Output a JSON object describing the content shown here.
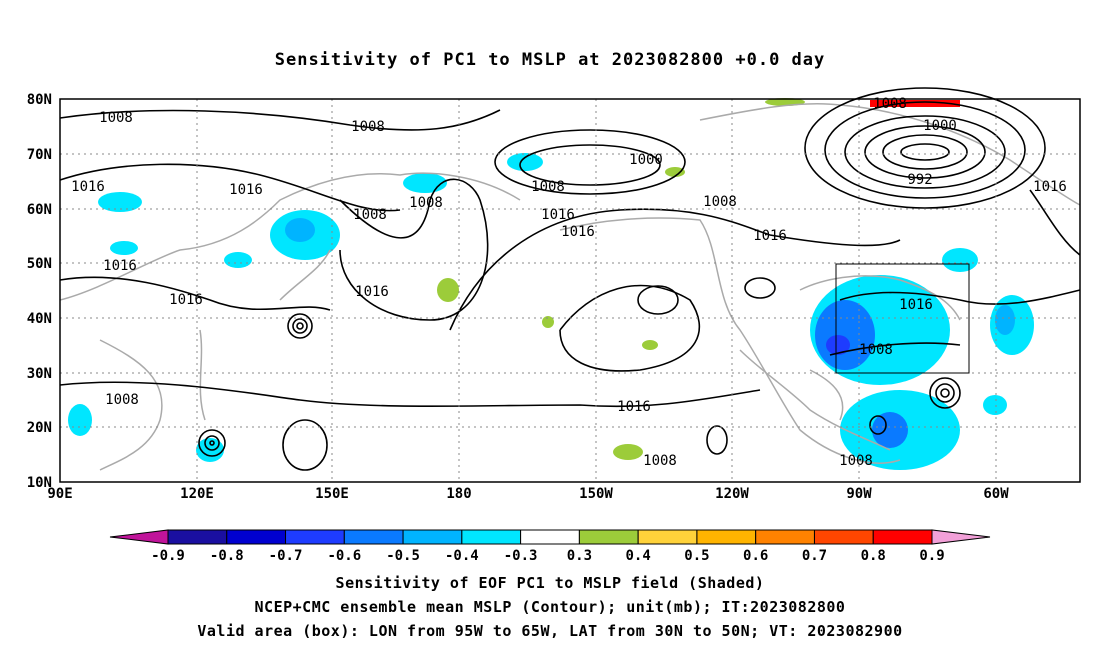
{
  "title": "Sensitivity of PC1 to MSLP at 2023082800 +0.0 day",
  "map": {
    "lat_labels": [
      "80N",
      "70N",
      "60N",
      "50N",
      "40N",
      "30N",
      "20N",
      "10N"
    ],
    "lon_labels": [
      "90E",
      "120E",
      "150E",
      "180",
      "150W",
      "120W",
      "90W",
      "60W"
    ],
    "lon_range": [
      "90E",
      "30W"
    ],
    "lat_range": [
      "10N",
      "80N"
    ],
    "valid_box": {
      "lon": [
        "95W",
        "65W"
      ],
      "lat": [
        "30N",
        "50N"
      ]
    },
    "contour_labels": [
      "1008",
      "1008",
      "1000",
      "992",
      "1016",
      "1016",
      "1016",
      "1016",
      "1016",
      "1008",
      "1008",
      "1000",
      "1008",
      "1016",
      "1016",
      "1016",
      "1016",
      "1008",
      "1016",
      "1008",
      "1008",
      "1008",
      "1016",
      "1008",
      "1008"
    ],
    "colors": {
      "coast": "#aaaaaa",
      "contour": "#000000",
      "grid": "#888888"
    }
  },
  "colorbar": {
    "labels": [
      "-0.9",
      "-0.8",
      "-0.7",
      "-0.6",
      "-0.5",
      "-0.4",
      "-0.3",
      "0.3",
      "0.4",
      "0.5",
      "0.6",
      "0.7",
      "0.8",
      "0.9"
    ],
    "colors": [
      "#c0149a",
      "#1a0fa0",
      "#0000d0",
      "#1e3cff",
      "#0a7aff",
      "#00b4ff",
      "#00e6ff",
      "#ffffff",
      "#9ccc3a",
      "#ffd23a",
      "#ffb400",
      "#ff8200",
      "#ff4600",
      "#ff0000",
      "#f2a0d8"
    ]
  },
  "captions": {
    "line1": "Sensitivity of EOF PC1 to MSLP field (Shaded)",
    "line2": "NCEP+CMC ensemble mean MSLP (Contour); unit(mb); IT:2023082800",
    "line3": "Valid area (box): LON from 95W to 65W, LAT from 30N to 50N; VT: 2023082900"
  }
}
